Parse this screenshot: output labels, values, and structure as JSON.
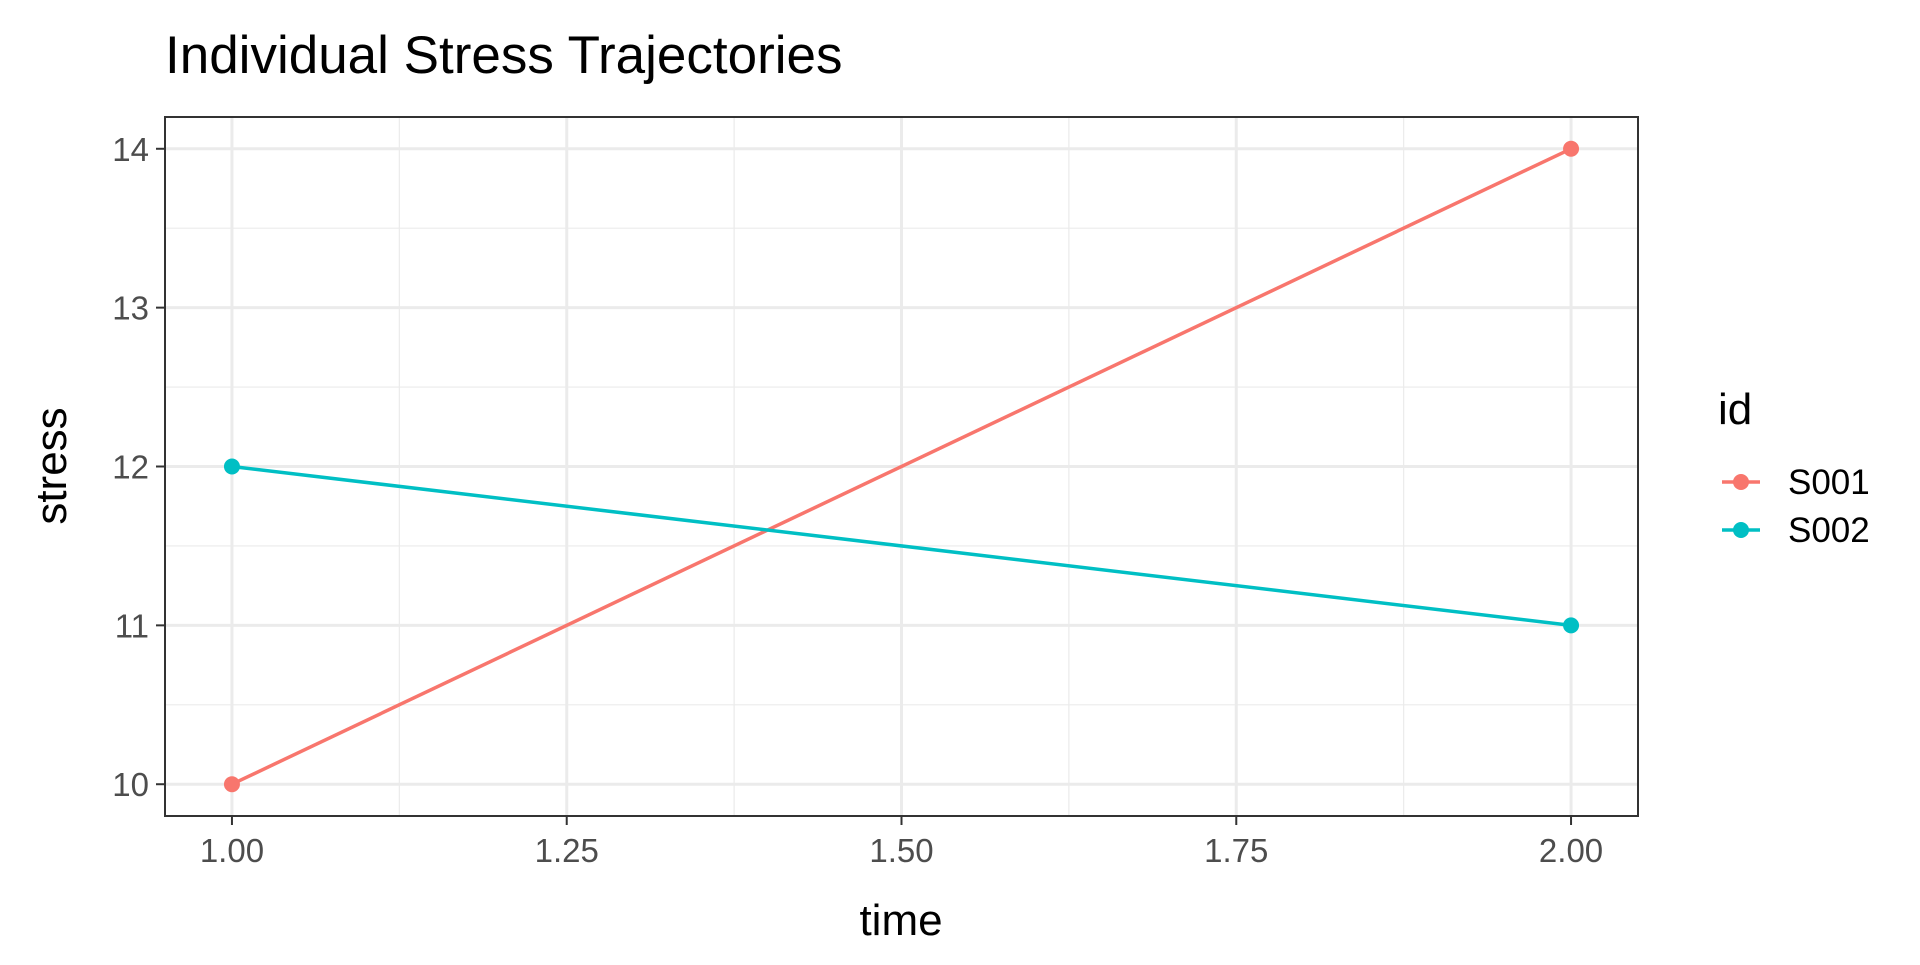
{
  "chart_data": {
    "type": "line",
    "title": "Individual Stress Trajectories",
    "xlabel": "time",
    "ylabel": "stress",
    "xlim": [
      0.95,
      2.05
    ],
    "ylim": [
      9.8,
      14.2
    ],
    "x_ticks": [
      1.0,
      1.25,
      1.5,
      1.75,
      2.0
    ],
    "x_tick_labels": [
      "1.00",
      "1.25",
      "1.50",
      "1.75",
      "2.00"
    ],
    "y_ticks": [
      10,
      11,
      12,
      13,
      14
    ],
    "y_tick_labels": [
      "10",
      "11",
      "12",
      "13",
      "14"
    ],
    "grid": true,
    "legend": {
      "title": "id",
      "position": "right"
    },
    "series": [
      {
        "name": "S001",
        "color": "#F8766D",
        "x": [
          1.0,
          2.0
        ],
        "y": [
          10,
          14
        ]
      },
      {
        "name": "S002",
        "color": "#00BFC4",
        "x": [
          1.0,
          2.0
        ],
        "y": [
          12,
          11
        ]
      }
    ]
  }
}
